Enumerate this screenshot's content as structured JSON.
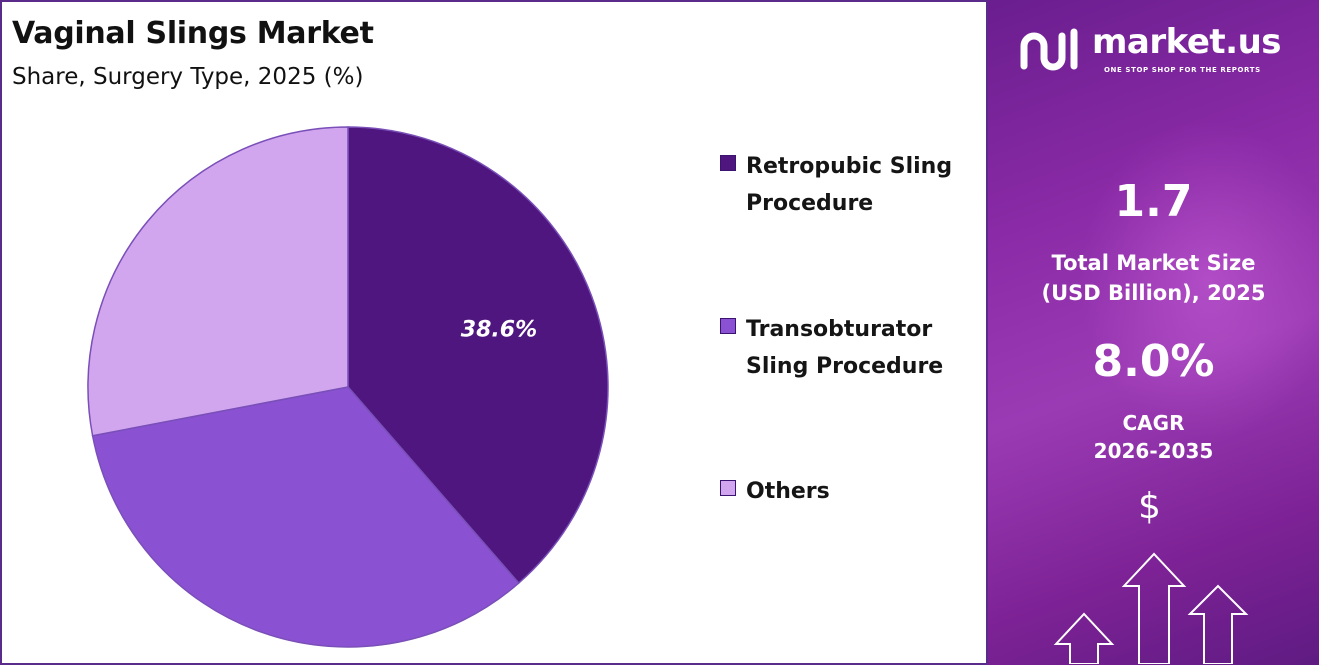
{
  "chart_data": {
    "type": "pie",
    "title": "Vaginal Slings Market",
    "subtitle": "Share, Surgery Type, 2025 (%)",
    "slices": [
      {
        "label": "Retropubic Sling Procedure",
        "value": 38.6,
        "color": "#4f1680",
        "data_label": "38.6%"
      },
      {
        "label": "Transobturator Sling Procedure",
        "value": 33.4,
        "color": "#8a52d3",
        "data_label": ""
      },
      {
        "label": "Others",
        "value": 28.0,
        "color": "#d2a6ef",
        "data_label": ""
      }
    ],
    "start_angle_deg": 0,
    "direction": "clockwise",
    "legend_position": "right"
  },
  "brand": {
    "name": "market.us",
    "tagline": "ONE STOP SHOP FOR THE REPORTS",
    "icon": "market-us-logo-icon"
  },
  "stats": {
    "market_size_value": "1.7",
    "market_size_label_line1": "Total Market Size",
    "market_size_label_line2": "(USD Billion), 2025",
    "cagr_value": "8.0%",
    "cagr_label_line1": "CAGR",
    "cagr_label_line2": "2026-2035",
    "currency_icon": "dollar-icon",
    "growth_icon": "up-arrows-icon"
  },
  "colors": {
    "panel_border": "#5b2b8c",
    "side_panel": "#8a2aa6"
  }
}
